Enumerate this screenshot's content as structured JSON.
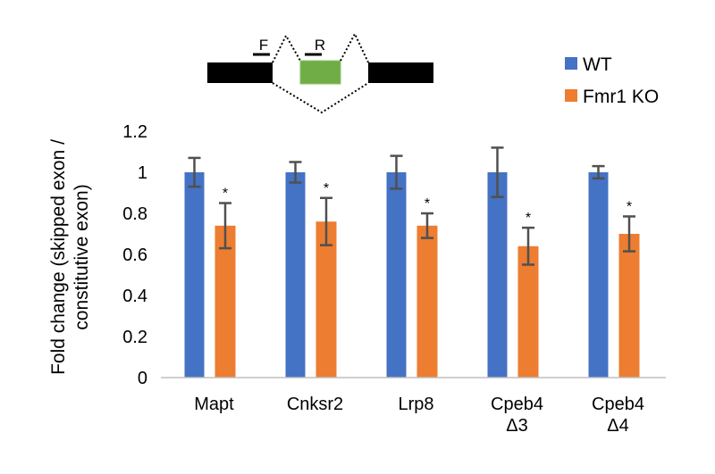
{
  "chart_data": {
    "type": "bar",
    "title": "",
    "xlabel": "",
    "ylabel": [
      "Fold change (skipped exon /",
      "constitutive exon)"
    ],
    "ylim": [
      0,
      1.2
    ],
    "yticks": [
      "0",
      "0.2",
      "0.4",
      "0.6",
      "0.8",
      "1",
      "1.2"
    ],
    "grid": false,
    "legend_placement": "top-right",
    "categories": [
      [
        "Mapt"
      ],
      [
        "Cnksr2"
      ],
      [
        "Lrp8"
      ],
      [
        "Cpeb4",
        "Δ3"
      ],
      [
        "Cpeb4",
        "Δ4"
      ]
    ],
    "series": [
      {
        "name": "WT",
        "color": "#4472C4",
        "values": [
          1,
          1,
          1,
          1,
          1
        ],
        "errors": [
          0.07,
          0.05,
          0.08,
          0.12,
          0.03
        ]
      },
      {
        "name": "Fmr1 KO",
        "color": "#ED7D31",
        "values": [
          0.74,
          0.76,
          0.74,
          0.64,
          0.7
        ],
        "errors": [
          0.11,
          0.115,
          0.06,
          0.09,
          0.085
        ]
      }
    ],
    "significance_marker": "*",
    "significant": [
      false,
      false,
      false,
      false,
      false,
      true,
      true,
      true,
      true,
      true
    ],
    "diagram": {
      "primer_forward": "F",
      "primer_reverse": "R",
      "skipped_exon_color": "#70AD47"
    }
  }
}
